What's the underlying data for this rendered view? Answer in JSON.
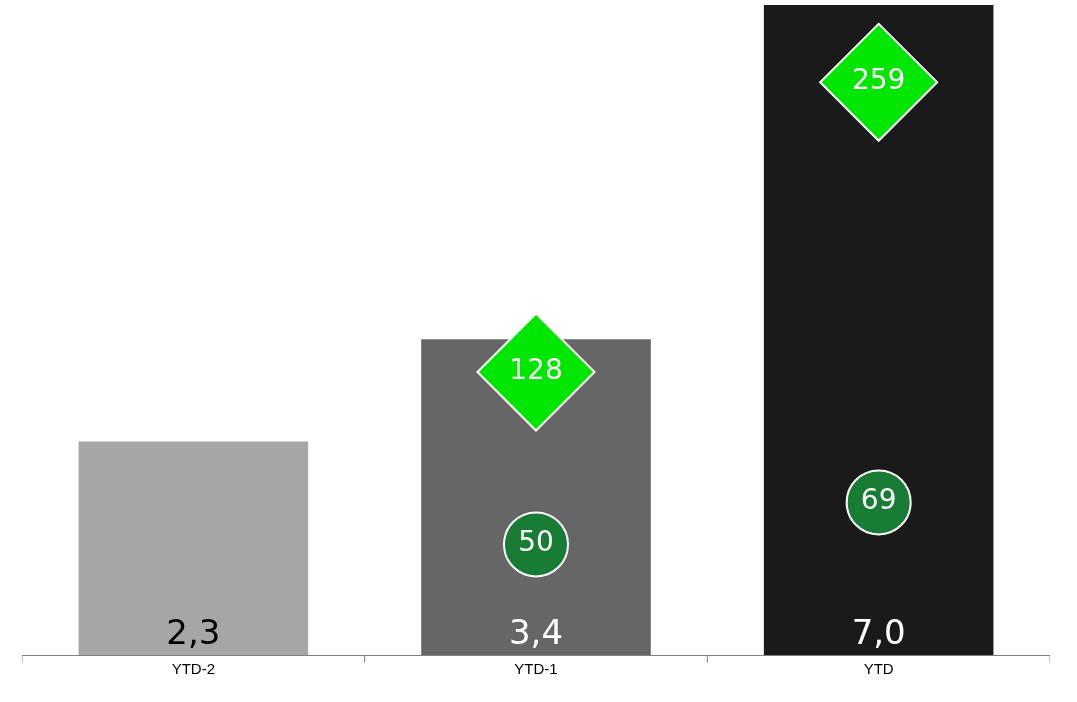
{
  "chart_data": {
    "type": "bar",
    "categories": [
      "YTD-2",
      "YTD-1",
      "YTD"
    ],
    "values": [
      2.3,
      3.4,
      7.0
    ],
    "colors": [
      "#a6a6a6",
      "#666666",
      "#1a1a1a"
    ],
    "value_labels": [
      "2,3",
      "3,4",
      "7,0"
    ],
    "series": [
      {
        "type": "scatter",
        "marker": "diamond",
        "color": "#00e600",
        "axis": "y2",
        "values": [
          null,
          128,
          259
        ]
      },
      {
        "type": "scatter",
        "marker": "circle",
        "color": "#187c35",
        "axis": "y2",
        "values": [
          null,
          50,
          69
        ]
      }
    ],
    "data_labels": true,
    "tick_labels": "x"
  }
}
